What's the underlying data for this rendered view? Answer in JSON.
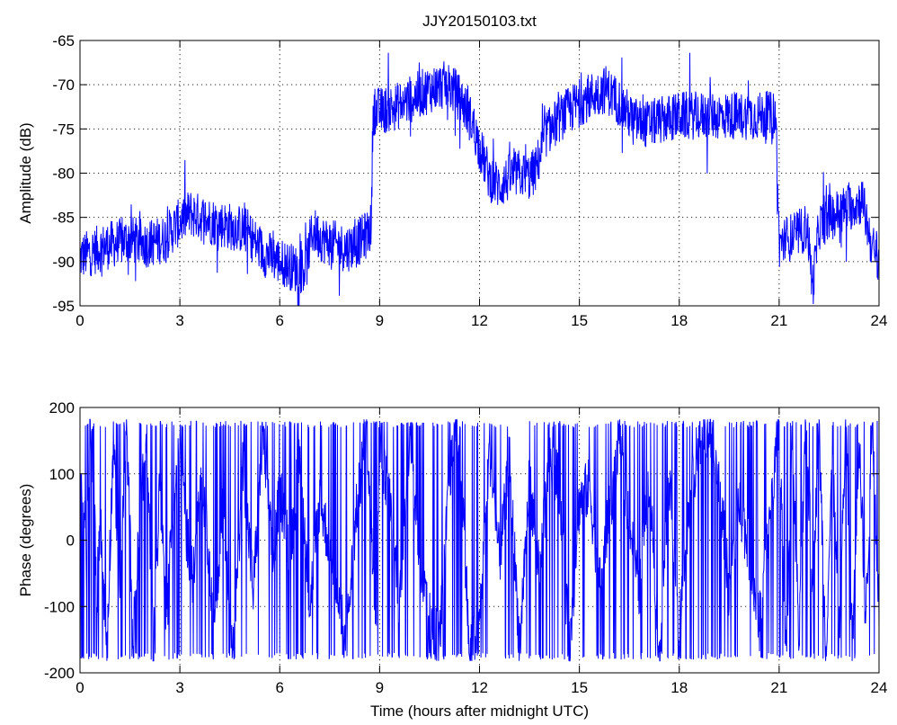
{
  "chart_data": [
    {
      "type": "line",
      "title": "JJY20150103.txt",
      "xlabel": "",
      "ylabel": "Amplitude (dB)",
      "xlim": [
        0,
        24
      ],
      "ylim": [
        -95,
        -65
      ],
      "xticks": [
        0,
        3,
        6,
        9,
        12,
        15,
        18,
        21,
        24
      ],
      "yticks": [
        -95,
        -90,
        -85,
        -80,
        -75,
        -70,
        -65
      ],
      "grid": true,
      "color": "#0000ff",
      "series": [
        {
          "x": [
            0,
            0.3,
            0.6,
            1.0,
            1.5,
            2.0,
            2.5,
            3.0,
            3.3,
            3.6,
            4.0,
            4.5,
            5.0,
            5.3,
            5.5,
            5.8,
            6.0,
            6.3,
            6.6,
            6.8,
            6.9,
            7.0,
            7.3,
            7.6,
            8.0,
            8.3,
            8.6,
            8.75,
            8.8,
            9.0,
            9.5,
            10.0,
            10.5,
            11.0,
            11.2,
            11.5,
            11.8,
            12.0,
            12.3,
            12.6,
            12.9,
            13.2,
            13.5,
            13.7,
            14.0,
            14.5,
            15.0,
            15.5,
            15.8,
            16.2,
            16.6,
            17.0,
            17.5,
            18.0,
            18.5,
            19.0,
            19.5,
            20.0,
            20.5,
            20.9,
            21.0,
            21.2,
            21.5,
            21.7,
            21.85,
            22.0,
            22.2,
            22.5,
            23.0,
            23.3,
            23.5,
            23.6,
            23.8,
            24.0
          ],
          "y": [
            -89.5,
            -89,
            -88.5,
            -88,
            -87.5,
            -88,
            -87.5,
            -85.5,
            -84.5,
            -85,
            -85.5,
            -86,
            -86.5,
            -88,
            -89,
            -89.5,
            -90,
            -90.5,
            -91,
            -90.5,
            -88,
            -86.5,
            -87.5,
            -88,
            -88.5,
            -88,
            -87,
            -86,
            -73,
            -73,
            -72.5,
            -71.5,
            -70.5,
            -70,
            -70.5,
            -72,
            -74.5,
            -77,
            -80.5,
            -81.5,
            -80.5,
            -80,
            -80.5,
            -79.5,
            -75.5,
            -73.5,
            -72,
            -71,
            -70.5,
            -72,
            -74,
            -74.5,
            -74,
            -73.5,
            -73.5,
            -73.5,
            -73.5,
            -73.5,
            -73.5,
            -73.5,
            -88,
            -87.5,
            -87,
            -86.5,
            -86,
            -93,
            -86,
            -85,
            -84,
            -83.5,
            -83,
            -85,
            -88.5,
            -89.5
          ]
        }
      ]
    },
    {
      "type": "line",
      "title": "",
      "xlabel": "Time (hours after midnight UTC)",
      "ylabel": "Phase (degrees)",
      "xlim": [
        0,
        24
      ],
      "ylim": [
        -200,
        200
      ],
      "xticks": [
        0,
        3,
        6,
        9,
        12,
        15,
        18,
        21,
        24
      ],
      "yticks": [
        -200,
        -100,
        0,
        100,
        200
      ],
      "grid": true,
      "color": "#0000ff",
      "series": [
        {
          "x": [
            0,
            0.1,
            0.2,
            0.3,
            0.4,
            0.5,
            0.6,
            0.8,
            1.0,
            1.2,
            1.4,
            1.6,
            1.8,
            2.0,
            2.2,
            2.4,
            2.6,
            2.8,
            3.0,
            3.2,
            3.4,
            3.6,
            3.8,
            4.0,
            4.3,
            4.6,
            4.9,
            5.2,
            5.5,
            5.8,
            6.0,
            6.3,
            6.6,
            6.9,
            7.2,
            7.5,
            7.8,
            8.0,
            8.3,
            8.6,
            8.9,
            9.0,
            9.3,
            9.6,
            9.9,
            10.2,
            10.5,
            10.8,
            11.1,
            11.4,
            11.7,
            12.0,
            12.3,
            12.6,
            12.9,
            13.2,
            13.5,
            13.8,
            14.1,
            14.4,
            14.7,
            15.0,
            15.3,
            15.6,
            15.9,
            16.2,
            16.5,
            16.8,
            17.1,
            17.4,
            17.7,
            18.0,
            18.3,
            18.6,
            18.9,
            19.2,
            19.5,
            19.8,
            20.1,
            20.4,
            20.7,
            21.0,
            21.2,
            21.4,
            21.6,
            21.8,
            22.0,
            22.2,
            22.4,
            22.6,
            22.8,
            23.0,
            23.2,
            23.4,
            23.6,
            23.8,
            24.0
          ],
          "y": [
            100,
            60,
            -40,
            170,
            120,
            -100,
            40,
            -160,
            140,
            -60,
            170,
            -150,
            30,
            160,
            -170,
            90,
            -120,
            60,
            140,
            10,
            -60,
            80,
            20,
            -140,
            60,
            -170,
            120,
            -80,
            160,
            -40,
            80,
            -20,
            130,
            -100,
            60,
            -10,
            -110,
            -150,
            40,
            170,
            -120,
            150,
            60,
            -90,
            160,
            -40,
            -120,
            -150,
            100,
            170,
            -170,
            -120,
            140,
            -30,
            120,
            -160,
            90,
            -60,
            130,
            80,
            -170,
            60,
            80,
            -60,
            40,
            150,
            30,
            -80,
            100,
            -170,
            80,
            -130,
            60,
            140,
            170,
            90,
            -80,
            60,
            -20,
            -130,
            40,
            170,
            -170,
            150,
            -160,
            170,
            -60,
            170,
            -170,
            120,
            -140,
            170,
            -160,
            160,
            -120,
            170,
            -100
          ]
        }
      ]
    }
  ]
}
